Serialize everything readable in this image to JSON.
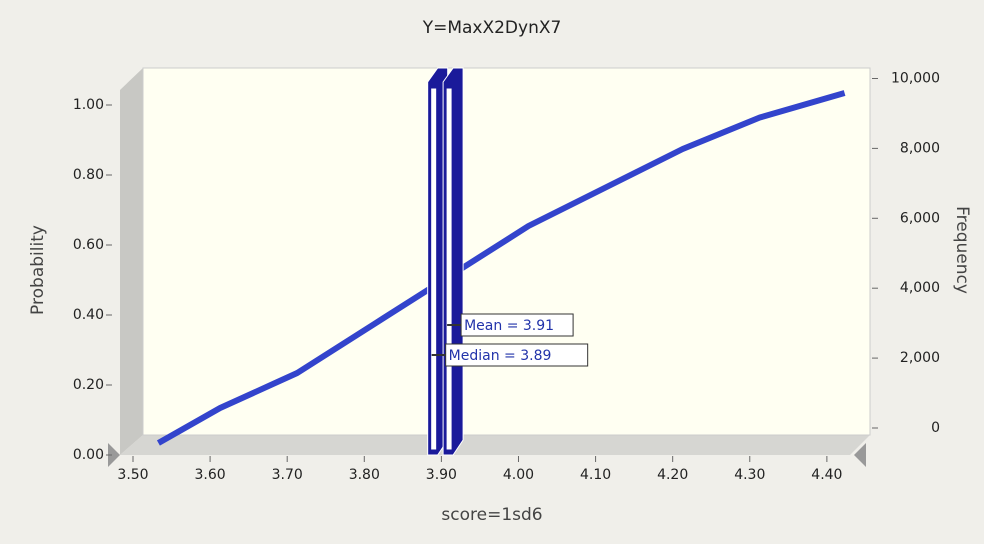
{
  "chart_data": {
    "type": "line",
    "title": "Y=MaxX2DynX7",
    "x_label": "score=1sd6",
    "y_label": "Probability",
    "y2_label": "Frequency",
    "x": [
      3.52,
      3.6,
      3.7,
      3.8,
      3.9,
      4.0,
      4.1,
      4.2,
      4.3,
      4.41
    ],
    "values": [
      0,
      0.1,
      0.2,
      0.34,
      0.48,
      0.62,
      0.73,
      0.84,
      0.93,
      1.0
    ],
    "color": "#3344cc",
    "xlim": [
      3.5,
      4.43
    ],
    "xticks": [
      {
        "value": 3.5,
        "label": "3.50"
      },
      {
        "value": 3.6,
        "label": "3.60"
      },
      {
        "value": 3.7,
        "label": "3.70"
      },
      {
        "value": 3.8,
        "label": "3.80"
      },
      {
        "value": 3.9,
        "label": "3.90"
      },
      {
        "value": 4.0,
        "label": "4.00"
      },
      {
        "value": 4.1,
        "label": "4.10"
      },
      {
        "value": 4.2,
        "label": "4.20"
      },
      {
        "value": 4.3,
        "label": "4.30"
      },
      {
        "value": 4.4,
        "label": "4.40"
      }
    ],
    "ylim": [
      0,
      1.1
    ],
    "yticks": [
      {
        "value": 0,
        "label": "0.00"
      },
      {
        "value": 0.2,
        "label": "0.20"
      },
      {
        "value": 0.4,
        "label": "0.40"
      },
      {
        "value": 0.6,
        "label": "0.60"
      },
      {
        "value": 0.8,
        "label": "0.80"
      },
      {
        "value": 1,
        "label": "1.00"
      }
    ],
    "y2lim": [
      0,
      10300
    ],
    "y2ticks": [
      0,
      {
        "value": 2000,
        "label": "2,000"
      },
      {
        "value": 4000,
        "label": "4,000"
      },
      {
        "value": 6000,
        "label": "6,000"
      },
      {
        "value": 8000,
        "label": "8,000"
      },
      {
        "value": 10000,
        "label": "10,000"
      }
    ],
    "markers": [
      {
        "value": 3.89,
        "label": "Median = 3.89"
      },
      {
        "value": 3.91,
        "label": "Mean = 3.91"
      }
    ],
    "marker_color": "#1a1a9a"
  }
}
